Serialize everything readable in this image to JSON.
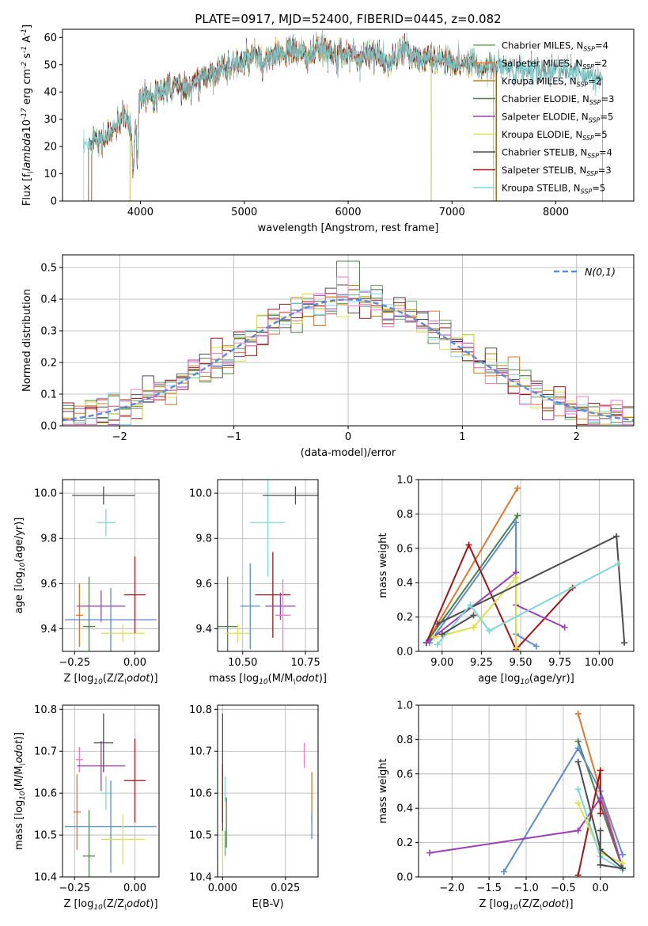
{
  "figure_title": "PLATE=0917, MJD=52400, FIBERID=0445, z=0.082",
  "colors": {
    "c0": "#6aaa6a",
    "c1": "#e2762c",
    "c2": "#b8860b",
    "c3": "#4d7f4d",
    "c4": "#9b3fb5",
    "c5": "#d8e34a",
    "c6": "#4d4d4d",
    "c7": "#a31515",
    "c8": "#7fd8d8",
    "blue": "#5b8bd6",
    "pink": "#f07ac8",
    "purple": "#9b3fb5"
  },
  "chart_data": [
    {
      "id": "spectrum",
      "type": "line",
      "title": "PLATE=0917, MJD=52400, FIBERID=0445, z=0.082",
      "xlabel": "wavelength [Angstrom, rest frame]",
      "ylabel": "Flux [f$_\\lambda$10$^{-17}$ erg cm$^{-2}$ s$^{-1}$ A$^{-1}$]",
      "xlim": [
        3250,
        8750
      ],
      "ylim": [
        0,
        63
      ],
      "xticks": [
        4000,
        5000,
        6000,
        7000,
        8000
      ],
      "yticks": [
        0,
        10,
        20,
        30,
        40,
        50,
        60
      ],
      "legend_position": "top-right",
      "envelope": [
        [
          3500,
          20
        ],
        [
          3550,
          24
        ],
        [
          3650,
          22
        ],
        [
          3750,
          27
        ],
        [
          3850,
          31
        ],
        [
          3900,
          27
        ],
        [
          3930,
          20
        ],
        [
          3960,
          37
        ],
        [
          4050,
          40
        ],
        [
          4150,
          38
        ],
        [
          4300,
          44
        ],
        [
          4450,
          41
        ],
        [
          4600,
          45
        ],
        [
          4750,
          48
        ],
        [
          4900,
          50
        ],
        [
          5000,
          51
        ],
        [
          5100,
          53
        ],
        [
          5200,
          52
        ],
        [
          5300,
          53
        ],
        [
          5400,
          55
        ],
        [
          5500,
          55
        ],
        [
          5600,
          53
        ],
        [
          5700,
          55
        ],
        [
          5800,
          56
        ],
        [
          5900,
          54
        ],
        [
          6000,
          55
        ],
        [
          6100,
          52
        ],
        [
          6200,
          55
        ],
        [
          6300,
          53
        ],
        [
          6400,
          50
        ],
        [
          6500,
          55
        ],
        [
          6600,
          53
        ],
        [
          6700,
          52
        ],
        [
          6800,
          53
        ],
        [
          6900,
          52
        ],
        [
          7000,
          51
        ],
        [
          7100,
          50
        ],
        [
          7200,
          52
        ],
        [
          7300,
          48
        ],
        [
          7400,
          50
        ],
        [
          7500,
          49
        ],
        [
          7600,
          48
        ],
        [
          7700,
          48
        ],
        [
          7800,
          48
        ],
        [
          7900,
          47
        ],
        [
          8000,
          49
        ],
        [
          8100,
          48
        ],
        [
          8200,
          47
        ],
        [
          8300,
          46
        ],
        [
          8400,
          45
        ]
      ],
      "dips": [
        [
          3934,
          12
        ],
        [
          3969,
          14
        ],
        [
          4300,
          38
        ],
        [
          5175,
          46
        ],
        [
          5893,
          49
        ],
        [
          6563,
          58
        ],
        [
          7600,
          44
        ]
      ],
      "series": [
        {
          "name": "Chabrier MILES, N$_{SSP}$=4",
          "color": "c0",
          "range": [
            3500,
            7400
          ]
        },
        {
          "name": "Salpeter MILES, N$_{SSP}$=2",
          "color": "c1",
          "range": [
            3530,
            7430
          ]
        },
        {
          "name": "Kroupa MILES, N$_{SSP}$=2",
          "color": "c2",
          "range": [
            3500,
            7420
          ]
        },
        {
          "name": "Chabrier ELODIE, N$_{SSP}$=3",
          "color": "c3",
          "range": [
            3900,
            6800
          ]
        },
        {
          "name": "Salpeter ELODIE, N$_{SSP}$=5",
          "color": "c4",
          "range": [
            3900,
            6800
          ]
        },
        {
          "name": "Kroupa ELODIE, N$_{SSP}$=5",
          "color": "c5",
          "range": [
            3900,
            6800
          ]
        },
        {
          "name": "Chabrier STELIB, N$_{SSP}$=4",
          "color": "c6",
          "range": [
            3500,
            8450
          ]
        },
        {
          "name": "Salpeter STELIB, N$_{SSP}$=3",
          "color": "c7",
          "range": [
            3530,
            7430
          ]
        },
        {
          "name": "Kroupa STELIB, N$_{SSP}$=5",
          "color": "c8",
          "range": [
            3450,
            8450
          ]
        }
      ]
    },
    {
      "id": "residuals",
      "type": "histogram",
      "xlabel": "(data-model)/error",
      "ylabel": "Normed distribution",
      "xlim": [
        -2.5,
        2.5
      ],
      "ylim": [
        0,
        0.54
      ],
      "xticks": [
        -2,
        -1,
        0,
        1,
        2
      ],
      "yticks": [
        0.0,
        0.1,
        0.2,
        0.3,
        0.4,
        0.5
      ],
      "bin_width": 0.1,
      "legend": {
        "label": "$\\mathcal{N}(0,1)$",
        "position": "top-right"
      },
      "series_colors": [
        "c0",
        "c1",
        "c2",
        "c3",
        "c4",
        "c5",
        "c6",
        "c7",
        "c8",
        "pink"
      ]
    },
    {
      "id": "age-vs-Z",
      "type": "errorbar",
      "xlabel": "Z [log$_{10}$(Z/Z$_\\odot$)]",
      "ylabel": "age  [log$_{10}$(age/yr)]",
      "xlim": [
        -0.3,
        0.1
      ],
      "ylim": [
        9.3,
        10.06
      ],
      "xticks": [
        -0.25,
        0.0
      ],
      "xticklabels": [
        "−0.25",
        "0.00"
      ],
      "yticks": [
        9.4,
        9.6,
        9.8,
        10.0
      ],
      "points": [
        {
          "x": -0.23,
          "y": 9.46,
          "xerr": 0.015,
          "yerr": 0.14,
          "color": "c1"
        },
        {
          "x": -0.19,
          "y": 9.41,
          "xerr": 0.025,
          "yerr": 0.22,
          "color": "c3"
        },
        {
          "x": -0.14,
          "y": 9.5,
          "xerr": 0.1,
          "yerr": 0.07,
          "color": "c4"
        },
        {
          "x": -0.13,
          "y": 9.99,
          "xerr": 0.13,
          "yerr": 0.04,
          "color": "c6"
        },
        {
          "x": -0.12,
          "y": 9.87,
          "xerr": 0.04,
          "yerr": 0.06,
          "color": "c8"
        },
        {
          "x": -0.1,
          "y": 9.44,
          "xerr": 0.19,
          "yerr": 0.14,
          "color": "blue"
        },
        {
          "x": -0.05,
          "y": 9.38,
          "xerr": 0.09,
          "yerr": 0.04,
          "color": "c5"
        },
        {
          "x": 0.0,
          "y": 9.55,
          "xerr": 0.045,
          "yerr": 0.17,
          "color": "c7"
        }
      ]
    },
    {
      "id": "age-vs-mass",
      "type": "errorbar",
      "xlabel": "mass [log$_{10}$(M/M$_\\odot$)]",
      "ylabel": "",
      "xlim": [
        10.4,
        10.8
      ],
      "ylim": [
        9.3,
        10.06
      ],
      "xticks": [
        10.5,
        10.75
      ],
      "xticklabels": [
        "10.50",
        "10.75"
      ],
      "yticks": [
        9.4,
        9.6,
        9.8,
        10.0
      ],
      "points": [
        {
          "x": 10.44,
          "y": 9.41,
          "xerr": 0.04,
          "yerr": 0.22,
          "color": "c3"
        },
        {
          "x": 10.48,
          "y": 9.38,
          "xerr": 0.05,
          "yerr": 0.04,
          "color": "c5"
        },
        {
          "x": 10.53,
          "y": 9.5,
          "xerr": 0.04,
          "yerr": 0.19,
          "color": "blue"
        },
        {
          "x": 10.6,
          "y": 9.87,
          "xerr": 0.07,
          "yerr": 0.24,
          "color": "c8"
        },
        {
          "x": 10.62,
          "y": 9.55,
          "xerr": 0.07,
          "yerr": 0.19,
          "color": "c7"
        },
        {
          "x": 10.65,
          "y": 9.5,
          "xerr": 0.06,
          "yerr": 0.06,
          "color": "c4"
        },
        {
          "x": 10.66,
          "y": 9.46,
          "xerr": 0.03,
          "yerr": 0.16,
          "color": "pink"
        },
        {
          "x": 10.71,
          "y": 9.99,
          "xerr": 0.13,
          "yerr": 0.04,
          "color": "c6"
        }
      ]
    },
    {
      "id": "weight-vs-age",
      "type": "line",
      "xlabel": "age  [log$_{10}$(age/yr)]",
      "ylabel": "mass weight",
      "xlim": [
        8.85,
        10.22
      ],
      "ylim": [
        0,
        1
      ],
      "xticks": [
        9.0,
        9.25,
        9.5,
        9.75,
        10.0
      ],
      "xticklabels": [
        "9.00",
        "9.25",
        "9.50",
        "9.75",
        "10.00"
      ],
      "yticks": [
        0.0,
        0.2,
        0.4,
        0.6,
        0.8,
        1.0
      ],
      "series": [
        {
          "color": "c1",
          "x": [
            8.9,
            9.48
          ],
          "y": [
            0.05,
            0.95
          ]
        },
        {
          "color": "c3",
          "x": [
            8.9,
            9.48
          ],
          "y": [
            0.05,
            0.79
          ]
        },
        {
          "color": "blue",
          "x": [
            8.92,
            9.47,
            9.47,
            9.6
          ],
          "y": [
            0.05,
            0.75,
            0.1,
            0.03
          ]
        },
        {
          "color": "c7",
          "x": [
            8.9,
            9.17,
            9.47,
            9.83
          ],
          "y": [
            0.05,
            0.62,
            0.01,
            0.37
          ]
        },
        {
          "color": "c4",
          "x": [
            8.9,
            9.47,
            9.47,
            9.78
          ],
          "y": [
            0.05,
            0.46,
            0.27,
            0.14
          ]
        },
        {
          "color": "c5",
          "x": [
            8.95,
            9.2,
            9.47,
            9.47
          ],
          "y": [
            0.08,
            0.14,
            0.43,
            0.02
          ]
        },
        {
          "color": "c6",
          "x": [
            8.97,
            10.11,
            10.16
          ],
          "y": [
            0.16,
            0.67,
            0.05
          ]
        },
        {
          "color": "c8",
          "x": [
            8.97,
            9.18,
            9.3,
            10.12
          ],
          "y": [
            0.04,
            0.27,
            0.12,
            0.51
          ]
        },
        {
          "color": "c6",
          "x": [
            9.0,
            9.2
          ],
          "y": [
            0.1,
            0.21
          ]
        }
      ]
    },
    {
      "id": "mass-vs-Z",
      "type": "errorbar",
      "xlabel": "Z [log$_{10}$(Z/Z$_\\odot$)]",
      "ylabel": "mass [log$_{10}$(M/M$_\\odot$)]",
      "xlim": [
        -0.3,
        0.1
      ],
      "ylim": [
        10.4,
        10.81
      ],
      "xticks": [
        -0.25,
        0.0
      ],
      "xticklabels": [
        "−0.25",
        "0.00"
      ],
      "yticks": [
        10.4,
        10.5,
        10.6,
        10.7,
        10.8
      ],
      "points": [
        {
          "x": -0.24,
          "y": 10.555,
          "xerr": 0.015,
          "yerr": 0.09,
          "color": "c1"
        },
        {
          "x": -0.23,
          "y": 10.68,
          "xerr": 0.015,
          "yerr": 0.03,
          "color": "pink"
        },
        {
          "x": -0.19,
          "y": 10.45,
          "xerr": 0.025,
          "yerr": 0.11,
          "color": "c3"
        },
        {
          "x": -0.14,
          "y": 10.665,
          "xerr": 0.1,
          "yerr": 0.06,
          "color": "c4"
        },
        {
          "x": -0.13,
          "y": 10.72,
          "xerr": 0.04,
          "yerr": 0.07,
          "color": "c6"
        },
        {
          "x": -0.12,
          "y": 10.6,
          "xerr": 0.02,
          "yerr": 0.04,
          "color": "c8"
        },
        {
          "x": -0.1,
          "y": 10.52,
          "xerr": 0.19,
          "yerr": 0.11,
          "color": "blue"
        },
        {
          "x": -0.05,
          "y": 10.49,
          "xerr": 0.09,
          "yerr": 0.06,
          "color": "c5"
        },
        {
          "x": 0.0,
          "y": 10.63,
          "xerr": 0.045,
          "yerr": 0.1,
          "color": "c7"
        }
      ]
    },
    {
      "id": "mass-vs-EBV",
      "type": "errorbar",
      "xlabel": "E(B-V)",
      "ylabel": "",
      "xlim": [
        -0.002,
        0.038
      ],
      "ylim": [
        10.4,
        10.81
      ],
      "xticks": [
        0.0,
        0.025
      ],
      "xticklabels": [
        "0.000",
        "0.025"
      ],
      "yticks": [
        10.4,
        10.5,
        10.6,
        10.7,
        10.8
      ],
      "points": [
        {
          "x": 0.0,
          "y": 10.47,
          "xerr": 0,
          "yerr": 0.04,
          "color": "c5"
        },
        {
          "x": 0.0,
          "y": 10.65,
          "xerr": 0,
          "yerr": 0.14,
          "color": "c6"
        },
        {
          "x": 0.0,
          "y": 10.6,
          "xerr": 0,
          "yerr": 0.07,
          "color": "c7"
        },
        {
          "x": 0.001,
          "y": 10.48,
          "xerr": 0,
          "yerr": 0.03,
          "color": "c0"
        },
        {
          "x": 0.001,
          "y": 10.61,
          "xerr": 0,
          "yerr": 0.03,
          "color": "c8"
        },
        {
          "x": 0.0015,
          "y": 10.53,
          "xerr": 0,
          "yerr": 0.06,
          "color": "c3"
        },
        {
          "x": 0.0325,
          "y": 10.69,
          "xerr": 0,
          "yerr": 0.03,
          "color": "pink"
        },
        {
          "x": 0.0355,
          "y": 10.59,
          "xerr": 0,
          "yerr": 0.06,
          "color": "c1"
        },
        {
          "x": 0.0355,
          "y": 10.52,
          "xerr": 0,
          "yerr": 0.03,
          "color": "blue"
        }
      ]
    },
    {
      "id": "weight-vs-Z",
      "type": "line",
      "xlabel": "Z [log$_{10}$(Z/Z$_\\odot$)]",
      "ylabel": "mass weight",
      "xlim": [
        -2.45,
        0.45
      ],
      "ylim": [
        0,
        1
      ],
      "xticks": [
        -2.0,
        -1.5,
        -1.0,
        -0.5,
        0.0
      ],
      "xticklabels": [
        "−2.0",
        "−1.5",
        "−1.0",
        "−0.5",
        "0.0"
      ],
      "yticks": [
        0.0,
        0.2,
        0.4,
        0.6,
        0.8,
        1.0
      ],
      "series": [
        {
          "color": "c1",
          "x": [
            -0.3,
            0.3
          ],
          "y": [
            0.95,
            0.05
          ]
        },
        {
          "color": "c3",
          "x": [
            -0.3,
            0.3
          ],
          "y": [
            0.79,
            0.05
          ]
        },
        {
          "color": "blue",
          "x": [
            -1.3,
            -0.3,
            0.0,
            0.3
          ],
          "y": [
            0.03,
            0.75,
            0.5,
            0.13
          ]
        },
        {
          "color": "c7",
          "x": [
            -0.3,
            0.0,
            0.0
          ],
          "y": [
            0.01,
            0.62,
            0.37
          ]
        },
        {
          "color": "purple",
          "x": [
            -2.3,
            -0.3,
            0.0,
            0.3
          ],
          "y": [
            0.14,
            0.27,
            0.46,
            0.05
          ]
        },
        {
          "color": "c5",
          "x": [
            -0.3,
            0.0,
            0.3
          ],
          "y": [
            0.43,
            0.14,
            0.08
          ]
        },
        {
          "color": "c6",
          "x": [
            -0.3,
            0.0,
            0.3
          ],
          "y": [
            0.67,
            0.16,
            0.05
          ]
        },
        {
          "color": "c8",
          "x": [
            -0.3,
            0.0,
            0.3
          ],
          "y": [
            0.51,
            0.12,
            0.04
          ]
        },
        {
          "color": "c6",
          "x": [
            0.0,
            0.0,
            0.3
          ],
          "y": [
            0.27,
            0.07,
            0.05
          ]
        }
      ]
    }
  ]
}
